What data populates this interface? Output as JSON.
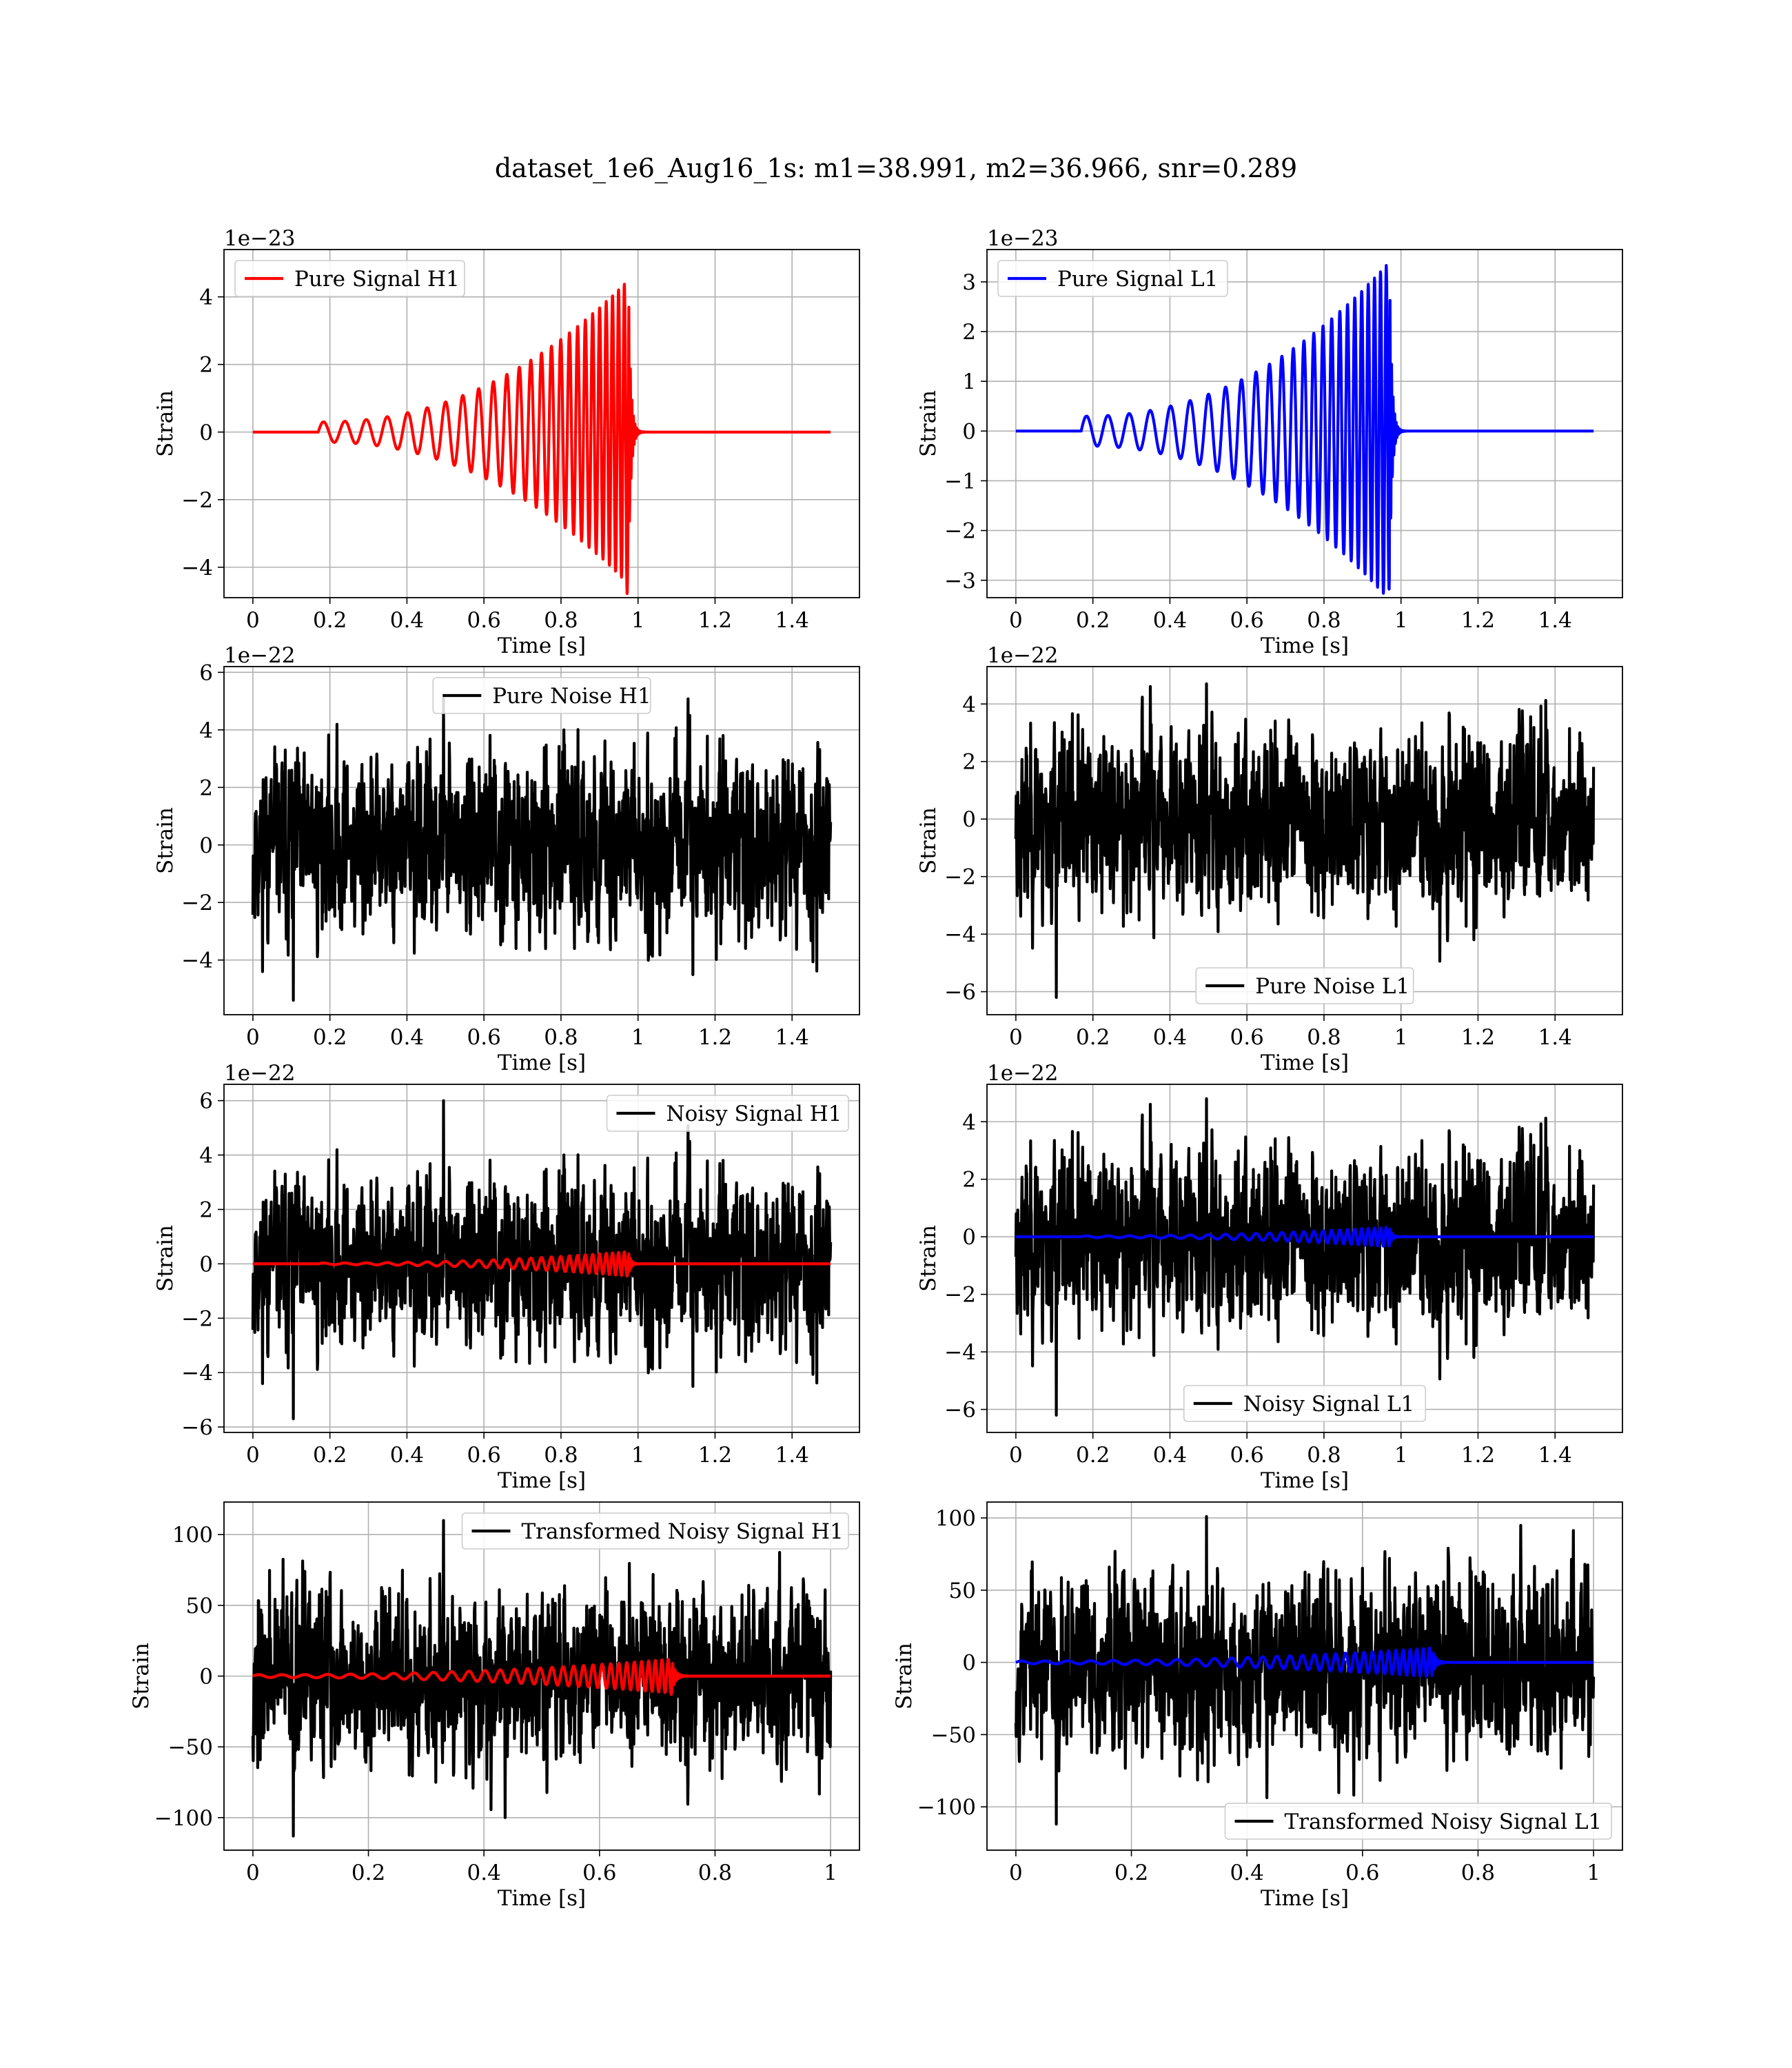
{
  "figure": {
    "title": "dataset_1e6_Aug16_1s: m1=38.991, m2=36.966, snr=0.289"
  },
  "chart_data": [
    {
      "id": "pure-signal-h1",
      "type": "line",
      "xlabel": "Time [s]",
      "ylabel": "Strain",
      "offset_text": "1e−23",
      "xlim": [
        -0.075,
        1.575
      ],
      "ylim": [
        -4.9,
        5.4
      ],
      "xticks": [
        0.0,
        0.2,
        0.4,
        0.6,
        0.8,
        1.0,
        1.2,
        1.4
      ],
      "yticks": [
        -4,
        -2,
        0,
        2,
        4
      ],
      "legend": "top-left",
      "series": [
        {
          "name": "Pure Signal H1",
          "color": "#ff0000",
          "kind": "chirp",
          "t_start": 0.17,
          "t_merge": 0.975,
          "x_end": 1.5,
          "amp_start": 0.3,
          "amp_merge": 4.5,
          "peak_min": -4.8,
          "f_start": 18,
          "f_merge": 70
        }
      ]
    },
    {
      "id": "pure-signal-l1",
      "type": "line",
      "xlabel": "Time [s]",
      "ylabel": "Strain",
      "offset_text": "1e−23",
      "xlim": [
        -0.075,
        1.575
      ],
      "ylim": [
        -3.35,
        3.65
      ],
      "xticks": [
        0.0,
        0.2,
        0.4,
        0.6,
        0.8,
        1.0,
        1.2,
        1.4
      ],
      "yticks": [
        -3,
        -2,
        -1,
        0,
        1,
        2,
        3
      ],
      "legend": "top-left",
      "series": [
        {
          "name": "Pure Signal L1",
          "color": "#0000ff",
          "kind": "chirp",
          "t_start": 0.17,
          "t_merge": 0.97,
          "x_end": 1.5,
          "amp_start": 0.3,
          "amp_merge": 3.4,
          "peak_min": -3.2,
          "f_start": 18,
          "f_merge": 70
        }
      ]
    },
    {
      "id": "pure-noise-h1",
      "type": "line",
      "xlabel": "Time [s]",
      "ylabel": "Strain",
      "offset_text": "1e−22",
      "xlim": [
        -0.075,
        1.575
      ],
      "ylim": [
        -5.9,
        6.2
      ],
      "xticks": [
        0.0,
        0.2,
        0.4,
        0.6,
        0.8,
        1.0,
        1.2,
        1.4
      ],
      "yticks": [
        -4,
        -2,
        0,
        2,
        4,
        6
      ],
      "legend": "top-center",
      "series": [
        {
          "name": "Pure Noise H1",
          "color": "#000000",
          "kind": "noise",
          "x_end": 1.5,
          "sigma": 1.5,
          "max": 5.1,
          "min": -5.4,
          "seed": 11
        }
      ]
    },
    {
      "id": "pure-noise-l1",
      "type": "line",
      "xlabel": "Time [s]",
      "ylabel": "Strain",
      "offset_text": "1e−22",
      "xlim": [
        -0.075,
        1.575
      ],
      "ylim": [
        -6.8,
        5.3
      ],
      "xticks": [
        0.0,
        0.2,
        0.4,
        0.6,
        0.8,
        1.0,
        1.2,
        1.4
      ],
      "yticks": [
        -6,
        -4,
        -2,
        0,
        2,
        4
      ],
      "legend": "bottom-center",
      "series": [
        {
          "name": "Pure Noise L1",
          "color": "#000000",
          "kind": "noise",
          "x_end": 1.5,
          "sigma": 1.5,
          "max": 4.7,
          "min": -6.2,
          "seed": 23
        }
      ]
    },
    {
      "id": "noisy-signal-h1",
      "type": "line",
      "xlabel": "Time [s]",
      "ylabel": "Strain",
      "offset_text": "1e−22",
      "xlim": [
        -0.075,
        1.575
      ],
      "ylim": [
        -6.2,
        6.6
      ],
      "xticks": [
        0.0,
        0.2,
        0.4,
        0.6,
        0.8,
        1.0,
        1.2,
        1.4
      ],
      "yticks": [
        -6,
        -4,
        -2,
        0,
        2,
        4,
        6
      ],
      "legend": "top-right",
      "series": [
        {
          "name": "Noisy Signal H1",
          "color": "#000000",
          "kind": "noise",
          "x_end": 1.5,
          "sigma": 1.5,
          "max": 6.0,
          "min": -5.7,
          "seed": 11
        },
        {
          "name": "",
          "color": "#ff0000",
          "kind": "chirp",
          "t_start": 0.17,
          "t_merge": 0.975,
          "x_end": 1.5,
          "amp_start": 0.03,
          "amp_merge": 0.45,
          "peak_min": -0.45,
          "f_start": 18,
          "f_merge": 70
        }
      ]
    },
    {
      "id": "noisy-signal-l1",
      "type": "line",
      "xlabel": "Time [s]",
      "ylabel": "Strain",
      "offset_text": "1e−22",
      "xlim": [
        -0.075,
        1.575
      ],
      "ylim": [
        -6.8,
        5.3
      ],
      "xticks": [
        0.0,
        0.2,
        0.4,
        0.6,
        0.8,
        1.0,
        1.2,
        1.4
      ],
      "yticks": [
        -6,
        -4,
        -2,
        0,
        2,
        4
      ],
      "legend": "bottom-center",
      "series": [
        {
          "name": "Noisy Signal L1",
          "color": "#000000",
          "kind": "noise",
          "x_end": 1.5,
          "sigma": 1.5,
          "max": 4.8,
          "min": -6.2,
          "seed": 23
        },
        {
          "name": "",
          "color": "#0000ff",
          "kind": "chirp",
          "t_start": 0.17,
          "t_merge": 0.97,
          "x_end": 1.5,
          "amp_start": 0.03,
          "amp_merge": 0.34,
          "peak_min": -0.32,
          "f_start": 18,
          "f_merge": 70
        }
      ]
    },
    {
      "id": "transformed-noisy-signal-h1",
      "type": "line",
      "xlabel": "Time [s]",
      "ylabel": "Strain",
      "offset_text": "",
      "xlim": [
        -0.05,
        1.05
      ],
      "ylim": [
        -123,
        123
      ],
      "xticks": [
        0.0,
        0.2,
        0.4,
        0.6,
        0.8,
        1.0
      ],
      "yticks": [
        -100,
        -50,
        0,
        50,
        100
      ],
      "legend": "top-right",
      "series": [
        {
          "name": "Transformed Noisy Signal H1",
          "color": "#000000",
          "kind": "noise",
          "x_end": 1.0,
          "sigma": 30,
          "max": 110,
          "min": -113,
          "seed": 37
        },
        {
          "name": "",
          "color": "#ff0000",
          "kind": "chirp",
          "t_start": 0.0,
          "t_merge": 0.725,
          "x_end": 1.0,
          "amp_start": 1.0,
          "amp_merge": 12,
          "peak_min": -13,
          "f_start": 25,
          "f_merge": 95
        }
      ]
    },
    {
      "id": "transformed-noisy-signal-l1",
      "type": "line",
      "xlabel": "Time [s]",
      "ylabel": "Strain",
      "offset_text": "",
      "xlim": [
        -0.05,
        1.05
      ],
      "ylim": [
        -130,
        111
      ],
      "xticks": [
        0.0,
        0.2,
        0.4,
        0.6,
        0.8,
        1.0
      ],
      "yticks": [
        -100,
        -50,
        0,
        50,
        100
      ],
      "legend": "bottom-right",
      "series": [
        {
          "name": "Transformed Noisy Signal L1",
          "color": "#000000",
          "kind": "noise",
          "x_end": 1.0,
          "sigma": 30,
          "max": 101,
          "min": -112,
          "seed": 53
        },
        {
          "name": "",
          "color": "#0000ff",
          "kind": "chirp",
          "t_start": 0.0,
          "t_merge": 0.72,
          "x_end": 1.0,
          "amp_start": 1.0,
          "amp_merge": 10,
          "peak_min": -10,
          "f_start": 25,
          "f_merge": 95
        }
      ]
    }
  ]
}
